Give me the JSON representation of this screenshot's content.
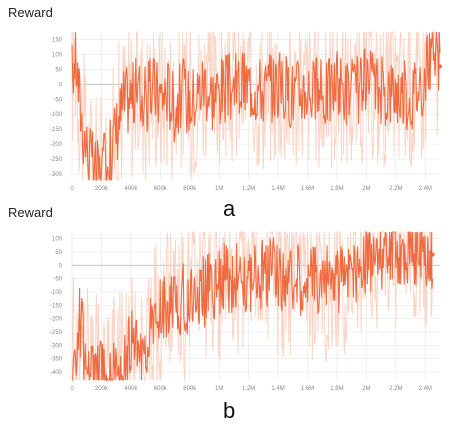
{
  "chart_data": [
    {
      "type": "line",
      "title": "Reward",
      "panel_label": "a",
      "x_tick_labels": [
        "0",
        "200k",
        "400k",
        "600k",
        "800k",
        "1M",
        "1.2M",
        "1.4M",
        "1.6M",
        "1.8M",
        "2M",
        "2.2M",
        "2.4M"
      ],
      "y_tick_labels": [
        "150",
        "100",
        "50",
        "0",
        "-50",
        "-100",
        "-150",
        "-200",
        "-250",
        "-300"
      ],
      "xlim": [
        0,
        2500000
      ],
      "ylim": [
        -320,
        175
      ],
      "grid": true,
      "color_raw": "#fbd2c2",
      "color_smoothed": "#f06a3f",
      "series": [
        {
          "x": [
            0,
            25000,
            50000,
            75000,
            100000,
            150000,
            200000,
            250000,
            300000,
            350000,
            400000,
            450000,
            500000,
            550000,
            600000,
            650000,
            700000,
            750000,
            800000,
            850000,
            900000,
            950000,
            1000000,
            1100000,
            1200000,
            1300000,
            1400000,
            1500000,
            1600000,
            1700000,
            1800000,
            1900000,
            2000000,
            2100000,
            2200000,
            2300000,
            2400000,
            2450000,
            2500000
          ],
          "y": [
            30,
            100,
            -50,
            -150,
            -210,
            -290,
            -300,
            -250,
            -150,
            -60,
            -40,
            -20,
            -60,
            -10,
            -40,
            -20,
            -80,
            -20,
            -60,
            -30,
            10,
            -40,
            -20,
            -10,
            0,
            -20,
            0,
            -30,
            -10,
            -40,
            0,
            -30,
            0,
            -20,
            -20,
            -40,
            30,
            120,
            60
          ]
        }
      ]
    },
    {
      "type": "line",
      "title": "Reward",
      "panel_label": "b",
      "x_tick_labels": [
        "0",
        "200k",
        "400k",
        "600k",
        "800k",
        "1M",
        "1.2M",
        "1.4M",
        "1.6M",
        "1.8M",
        "2M",
        "2.2M",
        "2.4M"
      ],
      "y_tick_labels": [
        "100",
        "50",
        "0",
        "-50",
        "-100",
        "-150",
        "-200",
        "-250",
        "-300",
        "-350",
        "-400"
      ],
      "xlim": [
        0,
        2500000
      ],
      "ylim": [
        -430,
        125
      ],
      "grid": true,
      "color_raw": "#fbd2c2",
      "color_smoothed": "#f06a3f",
      "series": [
        {
          "x": [
            0,
            25000,
            50000,
            100000,
            150000,
            200000,
            250000,
            300000,
            350000,
            400000,
            450000,
            500000,
            600000,
            700000,
            800000,
            900000,
            1000000,
            1100000,
            1200000,
            1300000,
            1400000,
            1500000,
            1600000,
            1700000,
            1800000,
            1900000,
            2000000,
            2100000,
            2200000,
            2300000,
            2400000,
            2450000
          ],
          "y": [
            -330,
            -340,
            -200,
            -380,
            -400,
            -420,
            -410,
            -380,
            -380,
            -300,
            -350,
            -300,
            -180,
            -140,
            -120,
            -100,
            -60,
            -40,
            -40,
            -30,
            -30,
            -60,
            -50,
            -50,
            -60,
            -20,
            20,
            40,
            60,
            60,
            60,
            40
          ]
        }
      ]
    }
  ]
}
